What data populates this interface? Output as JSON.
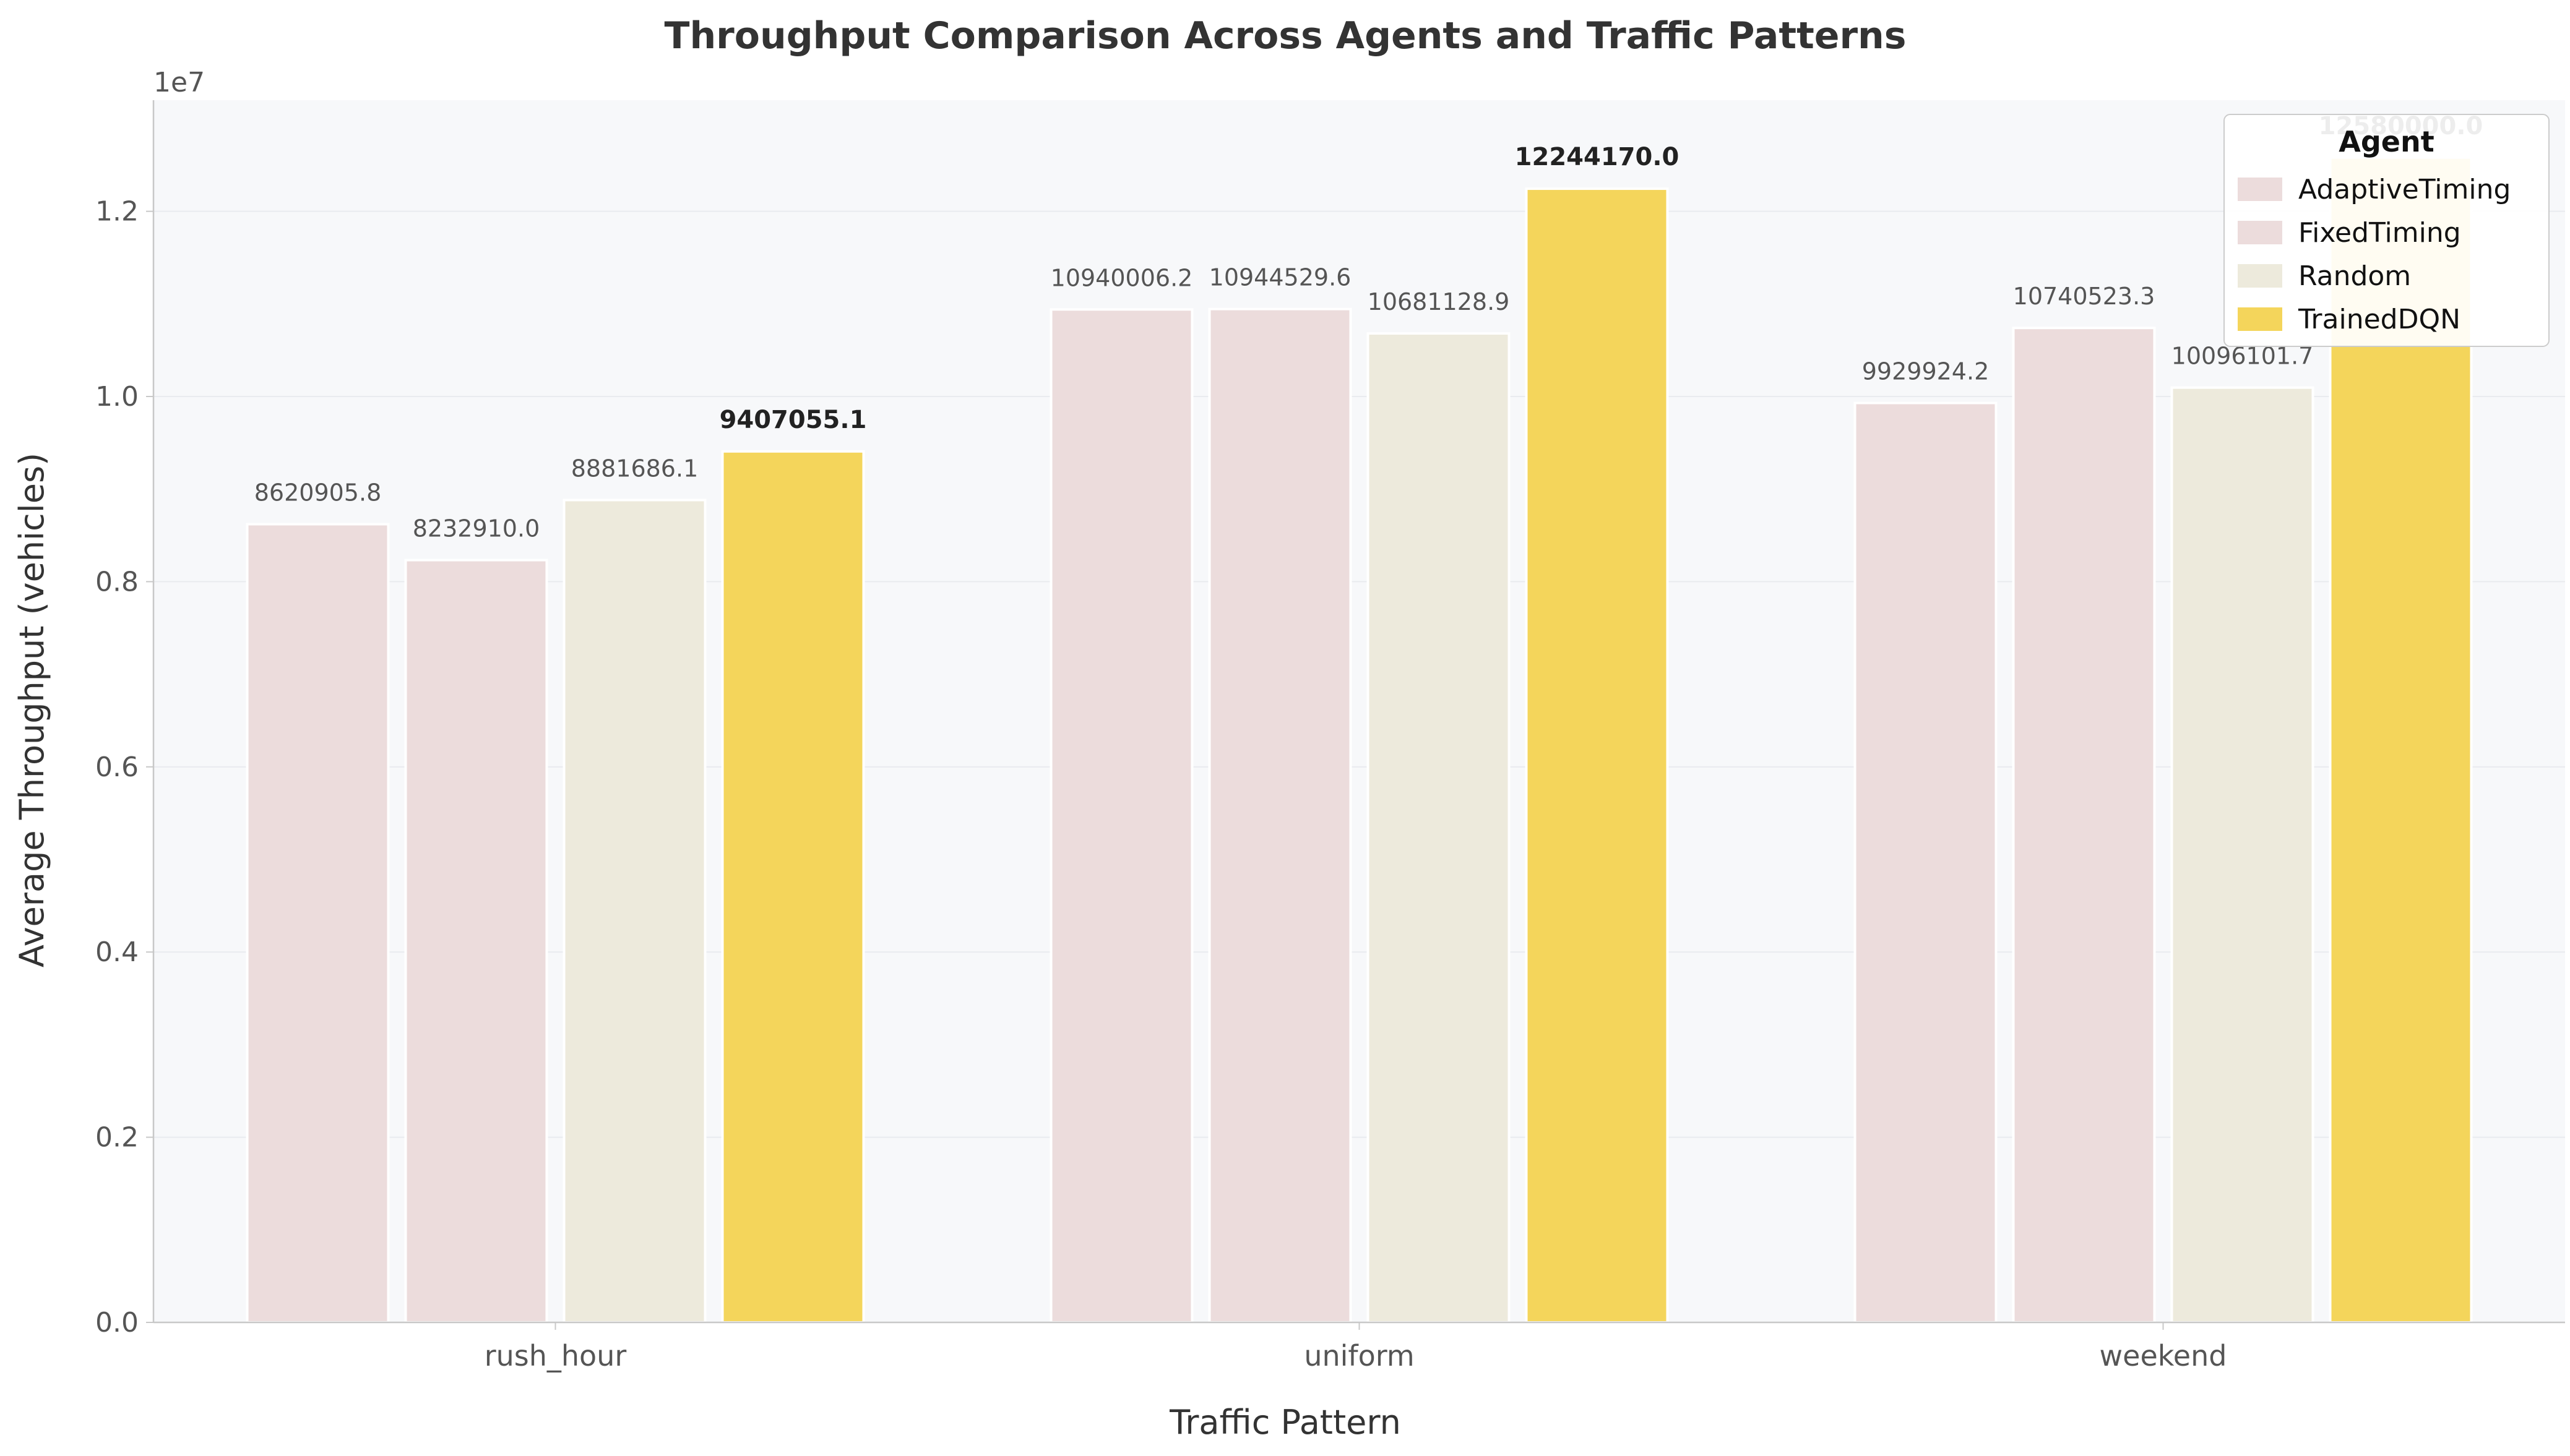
{
  "chart_data": {
    "type": "bar",
    "title": "Throughput Comparison Across Agents and Traffic Patterns",
    "xlabel": "Traffic Pattern",
    "ylabel": "Average Throughput (vehicles)",
    "y_offset_label": "1e7",
    "y_scale": 10000000,
    "ylim": [
      0,
      13200000
    ],
    "y_ticks": [
      0,
      2000000,
      4000000,
      6000000,
      8000000,
      10000000,
      12000000
    ],
    "y_tick_labels": [
      "0.0",
      "0.2",
      "0.4",
      "0.6",
      "0.8",
      "1.0",
      "1.2"
    ],
    "grid": "horizontal",
    "legend_position": "top-right",
    "legend_title": "Agent",
    "categories": [
      "rush_hour",
      "uniform",
      "weekend"
    ],
    "series": [
      {
        "name": "AdaptiveTiming",
        "color": "#ecdcdc",
        "values": [
          8620905.8,
          10940006.2,
          9929924.2
        ],
        "labels": [
          "8620905.8",
          "10940006.2",
          "9929924.2"
        ],
        "highlight": false
      },
      {
        "name": "FixedTiming",
        "color": "#ecdcdc",
        "values": [
          8232910.0,
          10944529.6,
          10740523.3
        ],
        "labels": [
          "8232910.0",
          "10944529.6",
          "10740523.3"
        ],
        "highlight": false
      },
      {
        "name": "Random",
        "color": "#edeadc",
        "values": [
          8881686.1,
          10681128.9,
          10096101.7
        ],
        "labels": [
          "8881686.1",
          "10681128.9",
          "10096101.7"
        ],
        "highlight": false
      },
      {
        "name": "TrainedDQN",
        "color": "#f4d55b",
        "values": [
          9407055.1,
          12244170.0,
          12580000.0
        ],
        "labels": [
          "9407055.1",
          "12244170.0",
          "12580000.0"
        ],
        "highlight": true
      }
    ],
    "colors": {
      "plot_background": "#f7f8fa",
      "grid": "#e9ebef",
      "axis": "#c8c8c8",
      "tick_text": "#555555",
      "label_text": "#333333",
      "value_label": "#555555",
      "highlight_label": "#222222"
    }
  }
}
